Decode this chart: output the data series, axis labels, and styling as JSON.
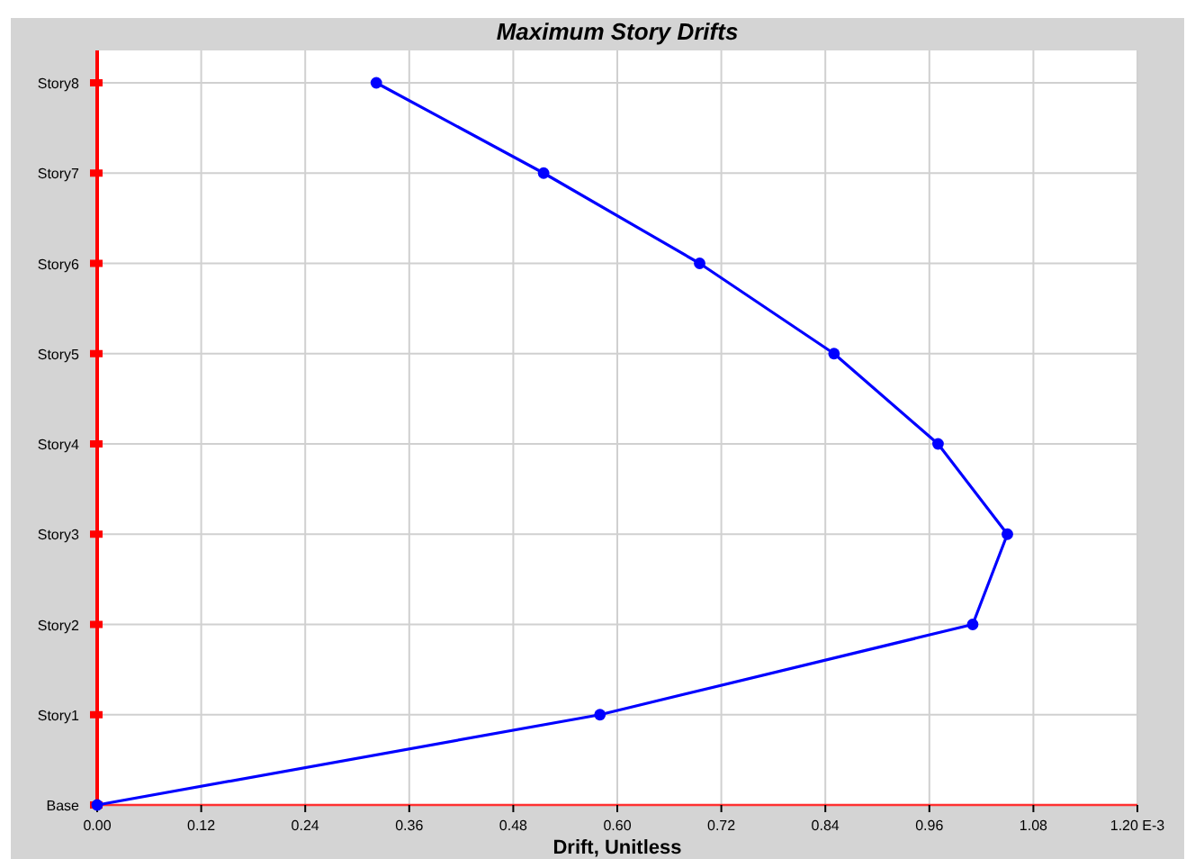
{
  "chart_data": {
    "type": "line",
    "title": "Maximum Story Drifts",
    "xlabel": "Drift, Unitless",
    "orientation": "horizontal",
    "categories": [
      "Story8",
      "Story7",
      "Story6",
      "Story5",
      "Story4",
      "Story3",
      "Story2",
      "Story1",
      "Base"
    ],
    "series": [
      {
        "color": "#0000ff",
        "values": [
          0.322,
          0.515,
          0.695,
          0.85,
          0.97,
          1.05,
          1.01,
          0.58,
          0
        ]
      }
    ],
    "xlim": [
      0,
      1.2
    ],
    "xticks": [
      {
        "value": 0,
        "label": "0.00"
      },
      {
        "value": 0.12,
        "label": "0.12"
      },
      {
        "value": 0.24,
        "label": "0.24"
      },
      {
        "value": 0.36,
        "label": "0.36"
      },
      {
        "value": 0.48,
        "label": "0.48"
      },
      {
        "value": 0.6,
        "label": "0.60"
      },
      {
        "value": 0.72,
        "label": "0.72"
      },
      {
        "value": 0.84,
        "label": "0.84"
      },
      {
        "value": 0.96,
        "label": "0.96"
      },
      {
        "value": 1.08,
        "label": "1.08"
      },
      {
        "value": 1.2,
        "label": "1.20 E-3"
      }
    ],
    "grid": true,
    "marker": "circle",
    "line_style": "solid"
  }
}
